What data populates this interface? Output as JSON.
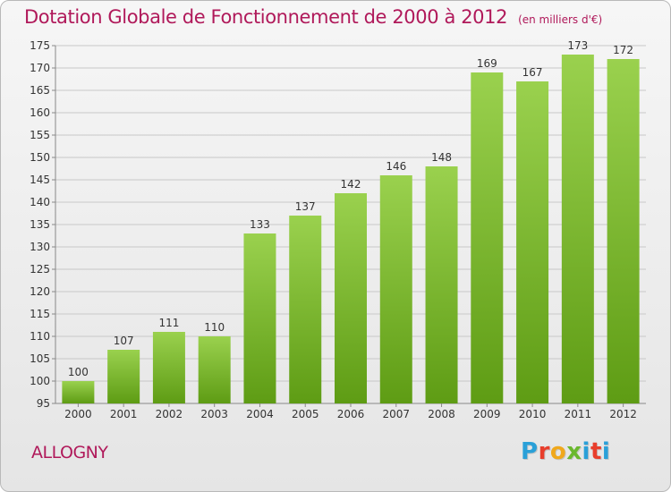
{
  "title": "Dotation Globale de Fonctionnement de 2000 à 2012",
  "subtitle": "(en milliers d'€)",
  "commune": "ALLOGNY",
  "logo_text": "Proxiti",
  "colors": {
    "title": "#b0195a",
    "bar_top": "#9ad14e",
    "bar_bottom": "#5e9c14",
    "grid": "#c8c8c8"
  },
  "chart_data": {
    "type": "bar",
    "categories": [
      "2000",
      "2001",
      "2002",
      "2003",
      "2004",
      "2005",
      "2006",
      "2007",
      "2008",
      "2009",
      "2010",
      "2011",
      "2012"
    ],
    "values": [
      100,
      107,
      111,
      110,
      133,
      137,
      142,
      146,
      148,
      169,
      167,
      173,
      172
    ],
    "ylim": [
      95,
      175
    ],
    "yticks": [
      95,
      100,
      105,
      110,
      115,
      120,
      125,
      130,
      135,
      140,
      145,
      150,
      155,
      160,
      165,
      170,
      175
    ],
    "grid": true,
    "xlabel": "",
    "ylabel": ""
  }
}
